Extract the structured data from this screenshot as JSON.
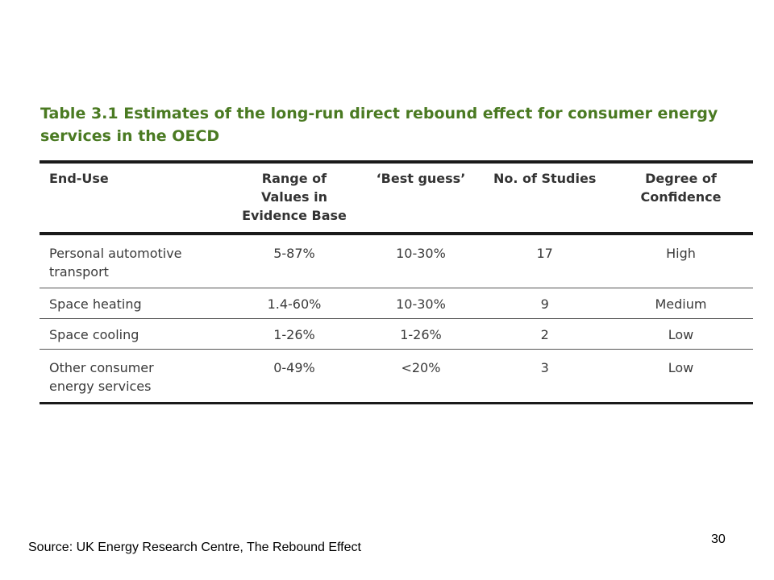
{
  "title": "Table 3.1 Estimates of the long-run direct rebound effect for consumer energy services in the OECD",
  "table": {
    "headers": [
      "End-Use",
      "Range of Values in Evidence Base",
      "‘Best guess’",
      "No. of Studies",
      "Degree of Confidence"
    ],
    "rows": [
      [
        "Personal automotive transport",
        "5-87%",
        "10-30%",
        "17",
        "High"
      ],
      [
        "Space heating",
        "1.4-60%",
        "10-30%",
        "9",
        "Medium"
      ],
      [
        "Space cooling",
        "1-26%",
        "1-26%",
        "2",
        "Low"
      ],
      [
        "Other consumer energy services",
        "0-49%",
        "<20%",
        "3",
        "Low"
      ]
    ]
  },
  "source": "Source: UK Energy Research Centre, The Rebound Effect",
  "page_number": "30",
  "colors": {
    "title": "#4a7a22",
    "rule": "#1a1a1a",
    "text": "#3a3a3a"
  }
}
